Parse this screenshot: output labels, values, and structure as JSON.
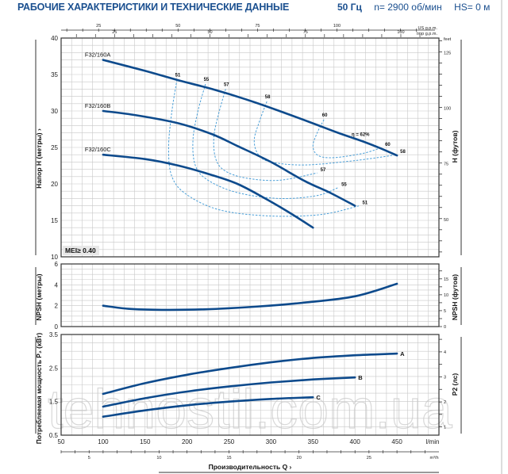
{
  "header": {
    "title": "РАБОЧИЕ ХАРАКТЕРИСТИКИ И ТЕХНИЧЕСКИЕ ДАННЫЕ",
    "frequency": "50 Гц",
    "speed": "n= 2900 об/мин",
    "hs": "HS= 0 м"
  },
  "watermark": "tehnostil.com.ua",
  "colors": {
    "curve": "#0d4a8c",
    "efficiency": "#4a9fd8",
    "grid": "#c8c8c8",
    "title": "#1a4f8f"
  },
  "chart_data": [
    {
      "type": "line",
      "id": "head",
      "title": "Head curves",
      "xlabel": "Производительность Q",
      "x_unit": "l/min",
      "ylabel": "Напор H (метры)",
      "ylabel_right": "H (футов)",
      "right_unit": "feet",
      "xlim": [
        50,
        500
      ],
      "ylim": [
        10,
        40
      ],
      "yticks": [
        10,
        15,
        20,
        25,
        30,
        35,
        40
      ],
      "right_ticks": [
        50,
        75,
        100,
        125
      ],
      "grid": true,
      "annotation": "MEI≥ 0.40",
      "efficiency_label": "η = 62%",
      "series": [
        {
          "name": "F32/160A",
          "x": [
            100,
            150,
            190,
            230,
            270,
            310,
            350,
            380,
            410,
            430,
            450
          ],
          "y": [
            37,
            35.5,
            34.2,
            33,
            31.6,
            30,
            28.3,
            27,
            25.8,
            24.9,
            23.9
          ]
        },
        {
          "name": "F32/160B",
          "x": [
            100,
            140,
            190,
            230,
            260,
            300,
            340,
            370,
            400
          ],
          "y": [
            30,
            29.4,
            28.3,
            26.8,
            25.2,
            23,
            20.4,
            18.8,
            17
          ]
        },
        {
          "name": "F32/160C",
          "x": [
            100,
            150,
            190,
            230,
            260,
            290,
            320,
            350
          ],
          "y": [
            24,
            23.4,
            22.5,
            21.2,
            20,
            18.2,
            16.2,
            14
          ]
        }
      ],
      "efficiency_curves": [
        {
          "label": "51",
          "x": [
            188,
            182,
            178,
            182,
            200,
            240,
            300,
            360,
            405
          ],
          "y": [
            34.3,
            30,
            25,
            21,
            18.5,
            16.4,
            15.6,
            15.8,
            17
          ]
        },
        {
          "label": "55",
          "x": [
            222,
            213,
            207,
            210,
            225,
            260,
            310,
            355,
            380
          ],
          "y": [
            33.7,
            30,
            26,
            22.5,
            20.5,
            18.8,
            18,
            18.4,
            19.5
          ]
        },
        {
          "label": "57",
          "x": [
            246,
            238,
            232,
            234,
            245,
            270,
            310,
            355
          ],
          "y": [
            33,
            29.8,
            26.5,
            23.5,
            21.8,
            20.8,
            20.5,
            21.5
          ]
        },
        {
          "label": "58",
          "x": [
            295,
            286,
            280,
            285,
            300,
            340,
            400,
            450
          ],
          "y": [
            31.3,
            28.5,
            26,
            24,
            23,
            22.6,
            23.2,
            24
          ]
        },
        {
          "label": "60",
          "x": [
            363,
            355,
            350,
            356,
            375,
            410,
            432
          ],
          "y": [
            28.8,
            27,
            25.2,
            23.9,
            23.6,
            24.2,
            25
          ]
        }
      ],
      "top_axes": [
        {
          "unit": "US g.p.m.",
          "ticks": [
            25,
            50,
            75,
            100
          ]
        },
        {
          "unit": "Imp g.p.m.",
          "ticks": [
            25,
            50,
            75,
            100
          ]
        }
      ]
    },
    {
      "type": "line",
      "id": "npsh",
      "ylabel": "NPSH (метры)",
      "ylabel_right": "NPSH (футов)",
      "xlim": [
        50,
        500
      ],
      "ylim": [
        0,
        6
      ],
      "yticks": [
        0,
        2,
        4,
        6
      ],
      "right_ticks": [
        0,
        5,
        10,
        15
      ],
      "grid": true,
      "series": [
        {
          "name": "NPSH",
          "x": [
            100,
            130,
            170,
            220,
            280,
            340,
            400,
            450
          ],
          "y": [
            2.0,
            1.7,
            1.6,
            1.65,
            1.9,
            2.3,
            2.9,
            4.1
          ]
        }
      ]
    },
    {
      "type": "line",
      "id": "power",
      "ylabel": "Потребляемая мощность P₂ (кВт)",
      "ylabel_right": "P2 (лс)",
      "xlabel": "Производительность Q",
      "x_unit": "l/min",
      "x2_unit": "m³/h",
      "xlim": [
        50,
        500
      ],
      "ylim": [
        0.5,
        3.5
      ],
      "yticks": [
        0.5,
        1.5,
        2.5,
        3.5
      ],
      "right_ticks": [
        1,
        2,
        3,
        4
      ],
      "xticks": [
        50,
        100,
        150,
        200,
        250,
        300,
        350,
        400,
        450
      ],
      "x2ticks": [
        5,
        10,
        15,
        20,
        25
      ],
      "grid": true,
      "series": [
        {
          "name": "A",
          "x": [
            100,
            150,
            200,
            250,
            300,
            350,
            400,
            450
          ],
          "y": [
            1.73,
            2.05,
            2.3,
            2.5,
            2.67,
            2.8,
            2.88,
            2.93
          ]
        },
        {
          "name": "B",
          "x": [
            100,
            150,
            200,
            250,
            300,
            350,
            400
          ],
          "y": [
            1.35,
            1.6,
            1.8,
            1.95,
            2.07,
            2.16,
            2.22
          ]
        },
        {
          "name": "C",
          "x": [
            100,
            150,
            200,
            250,
            300,
            350
          ],
          "y": [
            1.05,
            1.24,
            1.39,
            1.5,
            1.58,
            1.63
          ]
        }
      ]
    }
  ]
}
